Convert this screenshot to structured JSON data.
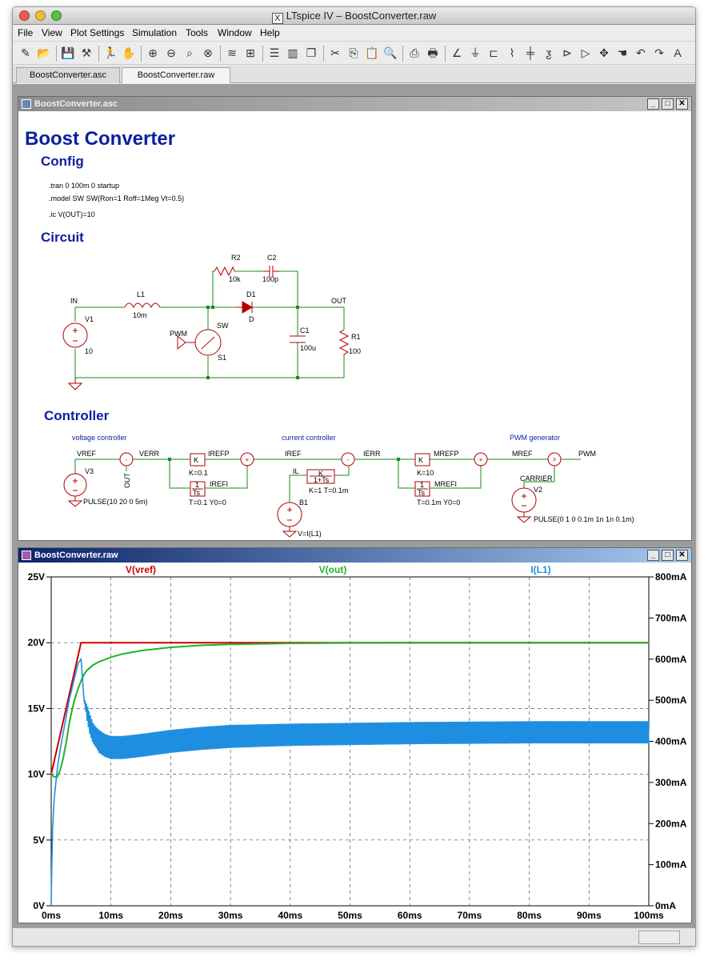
{
  "window": {
    "title": "LTspice IV – BoostConverter.raw"
  },
  "menu": [
    "File",
    "View",
    "Plot Settings",
    "Simulation",
    "Tools",
    "Window",
    "Help"
  ],
  "toolbar_icons": [
    "new-schematic-icon",
    "open-icon",
    "save-icon",
    "control-panel-icon",
    "run-icon",
    "halt-icon",
    "zoom-in-icon",
    "zoom-out-icon",
    "zoom-fit-icon",
    "zoom-cancel-icon",
    "autorange-icon",
    "pick-visible-traces-icon",
    "tile-horizontal-icon",
    "tile-vertical-icon",
    "cascade-icon",
    "cut-icon",
    "copy-icon",
    "paste-icon",
    "find-icon",
    "print-setup-icon",
    "print-icon",
    "wire-icon",
    "ground-icon",
    "label-net-icon",
    "resistor-icon",
    "capacitor-icon",
    "inductor-icon",
    "diode-icon",
    "component-icon",
    "move-icon",
    "drag-icon",
    "undo-icon",
    "redo-icon",
    "text-icon"
  ],
  "tabs": [
    {
      "label": "BoostConverter.asc",
      "active": false
    },
    {
      "label": "BoostConverter.raw",
      "active": true
    }
  ],
  "schematic": {
    "window_title": "BoostConverter.asc",
    "heading": "Boost Converter",
    "config_heading": "Config",
    "directives": [
      ".tran 0 100m 0 startup",
      ".model SW SW(Ron=1 Roff=1Meg Vt=0.5)",
      ".ic V(OUT)=10"
    ],
    "circuit_heading": "Circuit",
    "controller_heading": "Controller",
    "labels": {
      "IN": "IN",
      "OUT": "OUT",
      "V1": "V1",
      "V1val": "10",
      "L1": "L1",
      "L1val": "10m",
      "R2": "R2",
      "R2val": "10k",
      "C2": "C2",
      "C2val": "100p",
      "D1": "D1",
      "D1val": "D",
      "SW": "SW",
      "S1": "S1",
      "PWM": "PWM",
      "C1": "C1",
      "C1val": "100u",
      "R1": "R1",
      "R1val": "100",
      "vc": "voltage controller",
      "cc": "current controller",
      "pg": "PWM generator",
      "VREF": "VREF",
      "VERR": "VERR",
      "OUTv": "OUT",
      "V3": "V3",
      "V3val": "PULSE(10 20 0 5m)",
      "K1": "K",
      "K1val": "K=0.1",
      "IREFP": "IREFP",
      "I1a": "1",
      "I1b": "Ts",
      "I1val": "T=0.1 Y0=0",
      "IREFI": "IREFI",
      "IREF": "IREF",
      "IERR": "IERR",
      "IL": "IL",
      "LPa": "K",
      "LPb": "1+Ts",
      "LPval": "K=1 T=0.1m",
      "B1": "B1",
      "B1val": "V=I(L1)",
      "K2": "K",
      "K2val": "K=10",
      "MREFP": "MREFP",
      "I2a": "1",
      "I2b": "Ts",
      "I2val": "T=0.1m Y0=0",
      "MREFI": "MREFI",
      "MREF": "MREF",
      "PWMout": "PWM",
      "CARRIER": "CARRIER",
      "V2": "V2",
      "V2val": "PULSE(0 1 0 0.1m 1n 1n 0.1m)",
      "plus": "+",
      "minus": "-",
      "gt": ">"
    }
  },
  "waveform": {
    "window_title": "BoostConverter.raw",
    "chart_data": {
      "type": "line",
      "title": "",
      "xlabel": "",
      "x_ticks": [
        "0ms",
        "10ms",
        "20ms",
        "30ms",
        "40ms",
        "50ms",
        "60ms",
        "70ms",
        "80ms",
        "90ms",
        "100ms"
      ],
      "xlim": [
        0,
        100
      ],
      "left_axis": {
        "ylim": [
          0,
          25
        ],
        "ticks": [
          "0V",
          "5V",
          "10V",
          "15V",
          "20V",
          "25V"
        ]
      },
      "right_axis": {
        "ylim": [
          0,
          800
        ],
        "ticks": [
          "0mA",
          "100mA",
          "200mA",
          "300mA",
          "400mA",
          "500mA",
          "600mA",
          "700mA",
          "800mA"
        ]
      },
      "grid": true,
      "series": [
        {
          "name": "V(vref)",
          "axis": "left",
          "color": "#cc0000",
          "x": [
            0,
            5,
            100
          ],
          "y": [
            10,
            20,
            20
          ]
        },
        {
          "name": "V(out)",
          "axis": "left",
          "color": "#1fb41f",
          "x": [
            0,
            0.5,
            1,
            1.5,
            2,
            2.5,
            3,
            3.5,
            4,
            4.5,
            5,
            5.5,
            6,
            7,
            8,
            10,
            12,
            15,
            20,
            25,
            30,
            40,
            50,
            60,
            70,
            80,
            90,
            100
          ],
          "y": [
            10,
            9.8,
            9.8,
            10.3,
            11.2,
            12.4,
            13.8,
            14.9,
            15.8,
            16.5,
            17.1,
            17.6,
            17.9,
            18.3,
            18.55,
            18.9,
            19.15,
            19.4,
            19.65,
            19.8,
            19.88,
            19.95,
            19.98,
            20,
            20,
            20,
            20,
            20
          ]
        },
        {
          "name": "I(L1)",
          "axis": "right",
          "color": "#1e8fe0",
          "x": [
            0,
            0.2,
            0.5,
            1,
            1.5,
            2,
            2.5,
            3,
            3.5,
            4,
            4.5,
            5,
            5.5,
            6,
            6.5,
            7,
            7.5,
            8,
            9,
            10,
            12,
            15,
            20,
            25,
            30,
            40,
            50,
            60,
            70,
            80,
            90,
            100
          ],
          "y": [
            0,
            180,
            260,
            330,
            380,
            420,
            460,
            500,
            530,
            560,
            590,
            600,
            500,
            470,
            440,
            420,
            410,
            400,
            390,
            385,
            385,
            390,
            400,
            407,
            412,
            416,
            418,
            420,
            421,
            422,
            422,
            422
          ],
          "ripple_mA": [
            0,
            0,
            0,
            0,
            0,
            0,
            0,
            0,
            0,
            0,
            0,
            0,
            0,
            20,
            25,
            25,
            25,
            28,
            28,
            28,
            28,
            28,
            28,
            28,
            28,
            27,
            27,
            27,
            27,
            27,
            27,
            27
          ]
        }
      ]
    }
  }
}
